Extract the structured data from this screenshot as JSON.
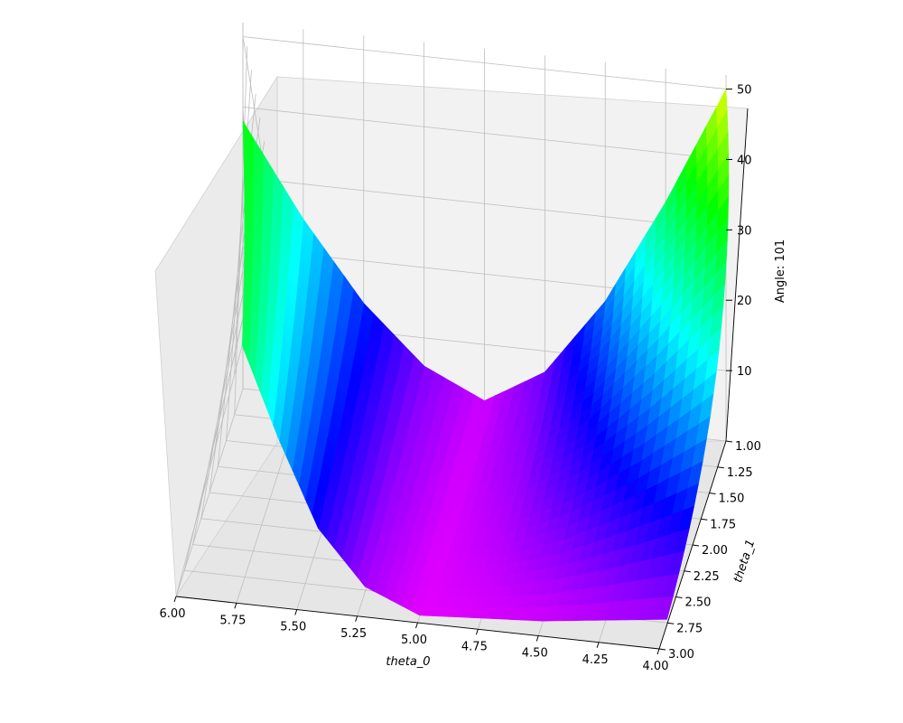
{
  "chart_data": {
    "type": "surface3d",
    "colormap": "gist_rainbow",
    "xlabel": "theta_0",
    "ylabel": "theta_1",
    "zlabel": "Angle: 101",
    "x_ticks": [
      "6.00",
      "5.75",
      "5.50",
      "5.25",
      "5.00",
      "4.75",
      "4.50",
      "4.25",
      "4.00"
    ],
    "y_ticks": [
      "1.00",
      "1.25",
      "1.50",
      "1.75",
      "2.00",
      "2.25",
      "2.50",
      "2.75",
      "3.00"
    ],
    "z_ticks": [
      "10",
      "20",
      "30",
      "40",
      "50"
    ],
    "xlim": [
      4.0,
      6.0
    ],
    "ylim": [
      1.0,
      3.0
    ],
    "zlim": [
      0,
      52
    ],
    "grid": true,
    "view": {
      "azimuth": 101,
      "elevation": 25
    },
    "surface": {
      "function": "z depends mainly on theta_0, minimum near theta_0 = 4.95",
      "samples_theta0": [
        4.0,
        4.25,
        4.5,
        4.75,
        5.0,
        5.25,
        5.5,
        5.75,
        6.0
      ],
      "samples_z_at_theta1_1": [
        50,
        33,
        18,
        7,
        2,
        6,
        14,
        25,
        38
      ],
      "samples_z_at_theta1_3": [
        4,
        3,
        2,
        1.5,
        1,
        4,
        11,
        22,
        34
      ]
    }
  }
}
